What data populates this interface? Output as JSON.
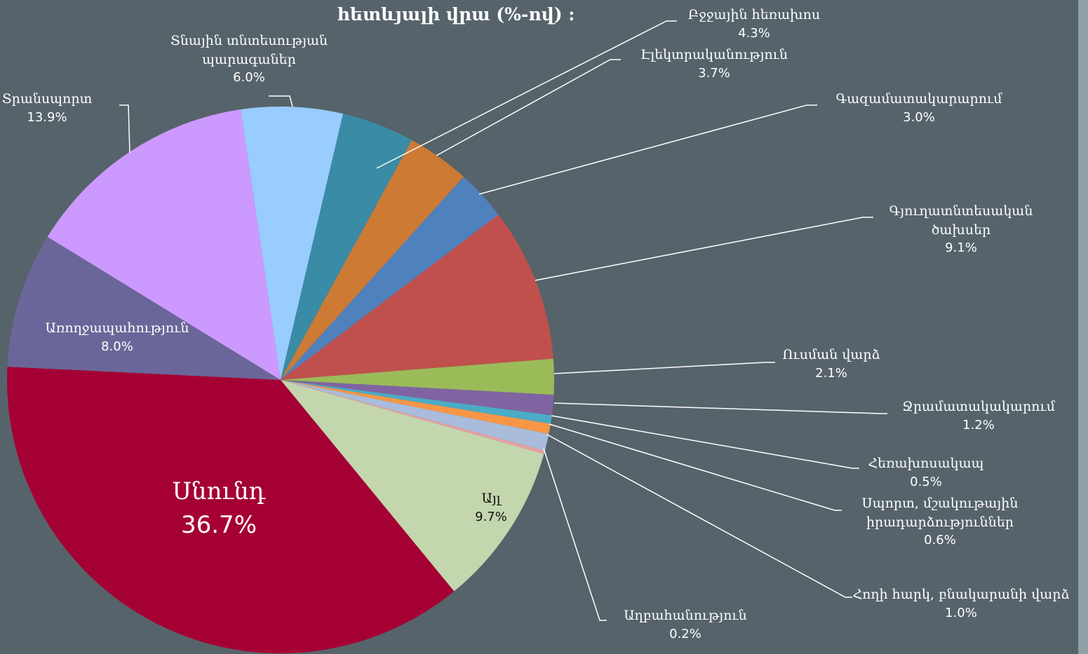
{
  "chart_data": {
    "type": "pie",
    "title": "հետևյալի վրա (%-ով) :",
    "categories": [
      "Տնային տնտեսության պարագաներ",
      "Բջջային հեռախոս",
      "Էլեկտրականություն",
      "Գազամատակարարում",
      "Գյուղատնտեսական ծախսեր",
      "Ուսման վարձ",
      "Ջրամատակակարում",
      "Հեռախոսակապ",
      "Սպորտ, մշակութային իրադարձություններ",
      "Հողի հարկ, բնակարանի վարձ",
      "Աղբահանություն",
      "Այլ",
      "Սնունդ",
      "Առողջապահություն",
      "Տրանսպորտ"
    ],
    "values": [
      6.0,
      4.3,
      3.7,
      3.0,
      9.1,
      2.1,
      1.2,
      0.5,
      0.6,
      1.0,
      0.2,
      9.7,
      36.7,
      8.0,
      13.9
    ],
    "value_labels": [
      "6.0%",
      "4.3%",
      "3.7%",
      "3.0%",
      "9.1%",
      "2.1%",
      "1.2%",
      "0.5%",
      "0.6%",
      "1.0%",
      "0.2%",
      "9.7%",
      "36.7%",
      "8.0%",
      "13.9%"
    ],
    "colors": [
      "#99ccff",
      "#3a8ba5",
      "#cd7a35",
      "#4f81bd",
      "#c0504d",
      "#9bbb59",
      "#8064a2",
      "#4bacc6",
      "#f79646",
      "#a9bcdc",
      "#e6a0a0",
      "#c4d6ae",
      "#a50034",
      "#6b6699",
      "#cc99ff"
    ]
  }
}
